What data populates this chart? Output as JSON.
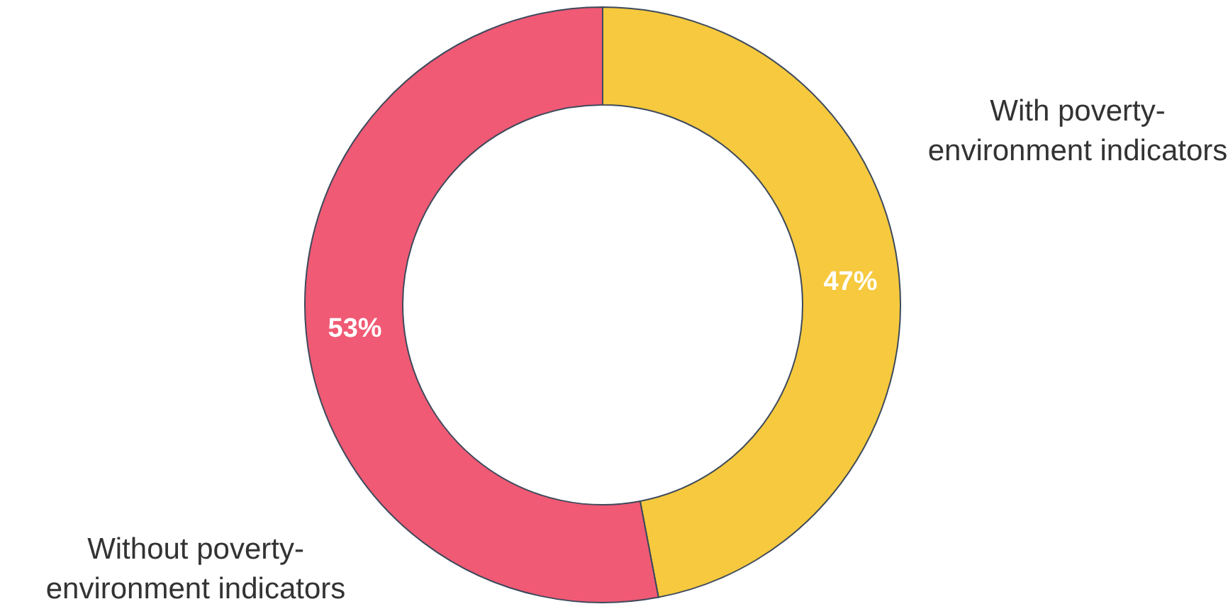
{
  "chart_data": {
    "type": "donut",
    "categories": [
      "With poverty-environment indicators",
      "Without poverty-environment indicators"
    ],
    "values": [
      47,
      53
    ],
    "colors": [
      "#f6c93e",
      "#f05a74"
    ],
    "value_labels": [
      "47%",
      "53%"
    ]
  }
}
